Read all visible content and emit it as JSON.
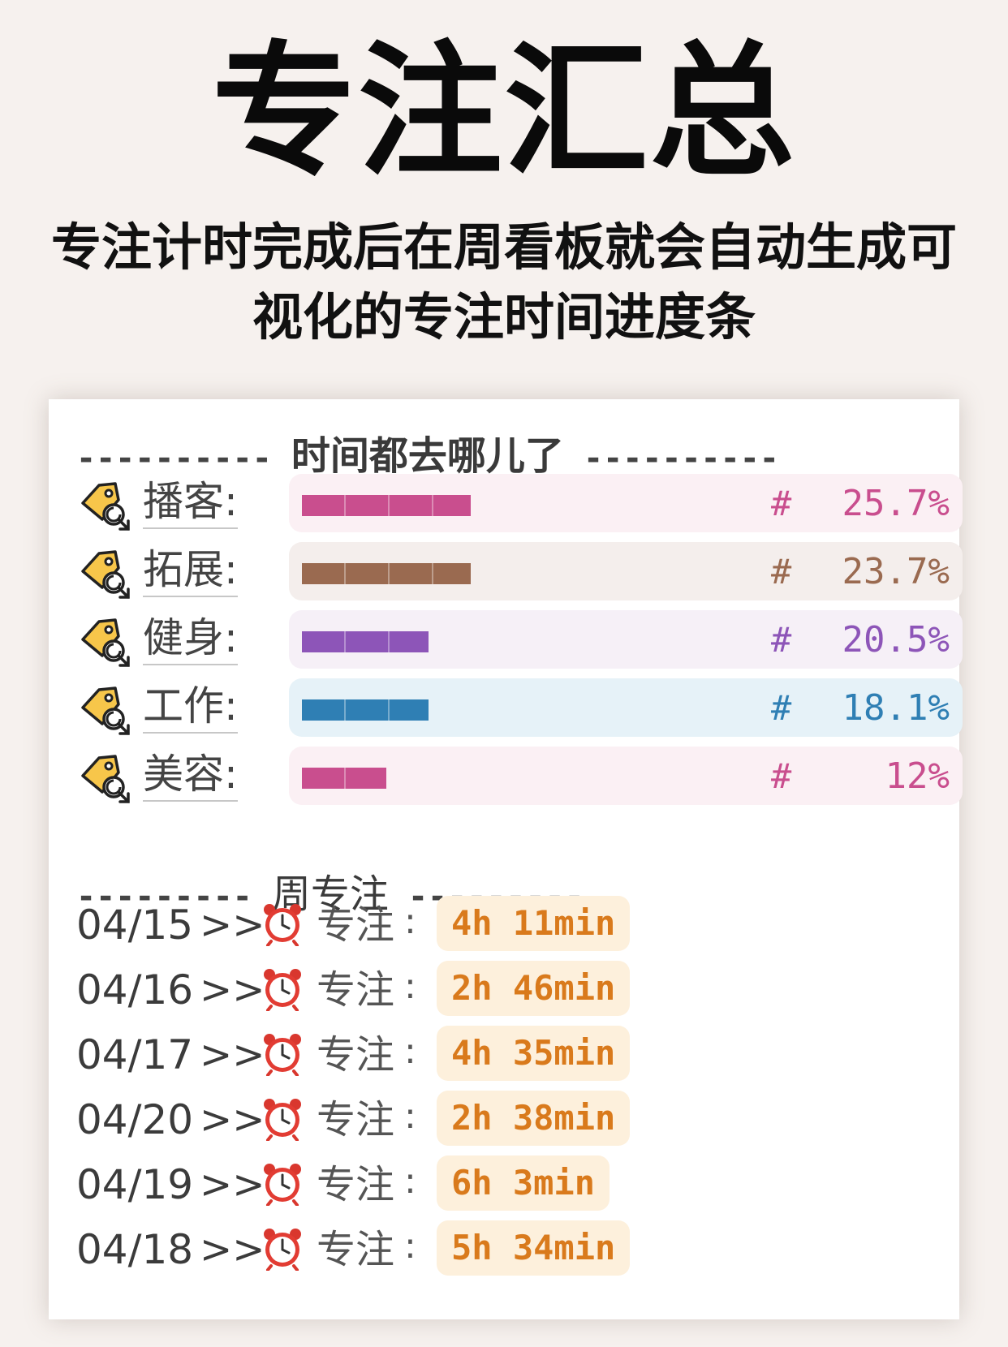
{
  "header": {
    "title": "专注汇总",
    "subtitle_line1": "专注计时完成后在周看板就会自动生成可",
    "subtitle_line2": "视化的专注时间进度条"
  },
  "time_section": {
    "dash_left": "----------",
    "label": "时间都去哪儿了",
    "dash_right": "----------"
  },
  "categories": [
    {
      "name": "播客:",
      "percent": "25.7%",
      "hash": "#",
      "fill_fraction": 0.257,
      "color": "#c94e8e",
      "bg": "#fbf0f4"
    },
    {
      "name": "拓展:",
      "percent": "23.7%",
      "hash": "#",
      "fill_fraction": 0.237,
      "color": "#9a6a50",
      "bg": "#f4eeec"
    },
    {
      "name": "健身:",
      "percent": "20.5%",
      "hash": "#",
      "fill_fraction": 0.205,
      "color": "#8d55b8",
      "bg": "#f6f0f7"
    },
    {
      "name": "工作:",
      "percent": "18.1%",
      "hash": "#",
      "fill_fraction": 0.181,
      "color": "#2f7fb4",
      "bg": "#e6f2f8"
    },
    {
      "name": "美容:",
      "percent": "12%",
      "hash": "#",
      "fill_fraction": 0.12,
      "color": "#c94e8e",
      "bg": "#fbf0f4"
    }
  ],
  "week_section": {
    "dash_left": "---------",
    "label": "周专注",
    "dash_right": "---------"
  },
  "week_entries": [
    {
      "date": "04/15",
      "arrow": ">>",
      "label": "专注",
      "colon": ":",
      "duration": "4h 11min"
    },
    {
      "date": "04/16",
      "arrow": ">>",
      "label": "专注",
      "colon": ":",
      "duration": "2h 46min"
    },
    {
      "date": "04/17",
      "arrow": ">>",
      "label": "专注",
      "colon": ":",
      "duration": "4h 35min"
    },
    {
      "date": "04/20",
      "arrow": ">>",
      "label": "专注",
      "colon": ":",
      "duration": "2h 38min"
    },
    {
      "date": "04/19",
      "arrow": ">>",
      "label": "专注",
      "colon": ":",
      "duration": "6h 3min"
    },
    {
      "date": "04/18",
      "arrow": ">>",
      "label": "专注",
      "colon": ":",
      "duration": "5h 34min"
    }
  ],
  "icons": {
    "category_icon": "tag-icon",
    "week_icon": "alarm-clock-icon"
  }
}
